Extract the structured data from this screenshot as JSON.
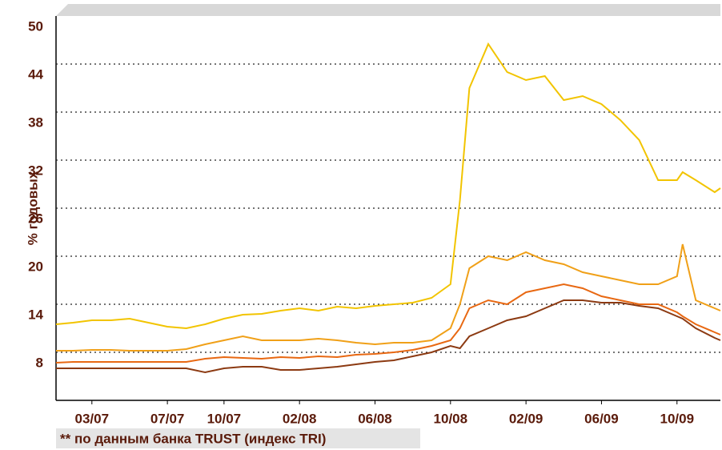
{
  "chart_data": {
    "type": "line",
    "y_label": "% годовых",
    "note": "** по данным банка TRUST (индекс TRI)",
    "x": [
      0.1,
      1,
      2,
      3,
      4,
      5,
      6,
      7,
      8,
      9,
      10,
      11,
      12,
      13,
      14,
      15,
      16,
      17,
      18,
      19,
      20,
      21,
      21.5,
      22,
      23,
      24,
      25,
      26,
      27,
      28,
      29,
      30,
      31,
      32,
      33,
      33.3,
      34,
      35,
      35.3
    ],
    "series": [
      {
        "color": "#f2c400",
        "values": [
          11.5,
          11.7,
          12,
          12,
          12.2,
          11.7,
          11.2,
          11,
          11.5,
          12.2,
          12.7,
          12.8,
          13.2,
          13.5,
          13.2,
          13.7,
          13.5,
          13.8,
          14,
          14.2,
          14.8,
          16.5,
          27,
          41,
          46.5,
          43,
          42,
          42.5,
          39.5,
          40,
          39,
          37,
          34.5,
          29.5,
          29.5,
          30.5,
          29.5,
          28,
          28.5
        ]
      },
      {
        "color": "#f0a018",
        "values": [
          8.2,
          8.2,
          8.3,
          8.3,
          8.2,
          8.2,
          8.2,
          8.4,
          9,
          9.5,
          10,
          9.5,
          9.5,
          9.5,
          9.7,
          9.5,
          9.2,
          9,
          9.2,
          9.2,
          9.5,
          11,
          14,
          18.5,
          20,
          19.5,
          20.5,
          19.5,
          19,
          18,
          17.5,
          17,
          16.5,
          16.5,
          17.5,
          21.5,
          14.5,
          13.5,
          13.2
        ]
      },
      {
        "color": "#e86812",
        "values": [
          6.7,
          6.8,
          6.8,
          6.8,
          6.8,
          6.8,
          6.8,
          6.8,
          7.2,
          7.4,
          7.3,
          7.2,
          7.4,
          7.3,
          7.5,
          7.4,
          7.7,
          7.8,
          8,
          8.3,
          8.8,
          9.5,
          11,
          13.5,
          14.5,
          14,
          15.5,
          16,
          16.5,
          16,
          15,
          14.5,
          14,
          14,
          13,
          12.5,
          11.5,
          10.5,
          10.2
        ]
      },
      {
        "color": "#8c3a12",
        "values": [
          6,
          6,
          6,
          6,
          6,
          6,
          6,
          6,
          5.5,
          6,
          6.2,
          6.2,
          5.8,
          5.8,
          6,
          6.2,
          6.5,
          6.8,
          7,
          7.5,
          8,
          8.8,
          8.5,
          10,
          11,
          12,
          12.5,
          13.5,
          14.5,
          14.5,
          14.2,
          14.2,
          13.8,
          13.5,
          12.5,
          12.2,
          11,
          9.8,
          9.5
        ]
      }
    ],
    "xlim": [
      0.1,
      35.3
    ],
    "xticks": [
      {
        "value": 2,
        "label": "03/07"
      },
      {
        "value": 6,
        "label": "07/07"
      },
      {
        "value": 9,
        "label": "10/07"
      },
      {
        "value": 13,
        "label": "02/08"
      },
      {
        "value": 17,
        "label": "06/08"
      },
      {
        "value": 21,
        "label": "10/08"
      },
      {
        "value": 25,
        "label": "02/09"
      },
      {
        "value": 29,
        "label": "06/09"
      },
      {
        "value": 33,
        "label": "10/09"
      }
    ],
    "ylim": [
      2,
      50
    ],
    "yticks": [
      50,
      44,
      38,
      32,
      26,
      20,
      14,
      8
    ],
    "grid": true
  }
}
